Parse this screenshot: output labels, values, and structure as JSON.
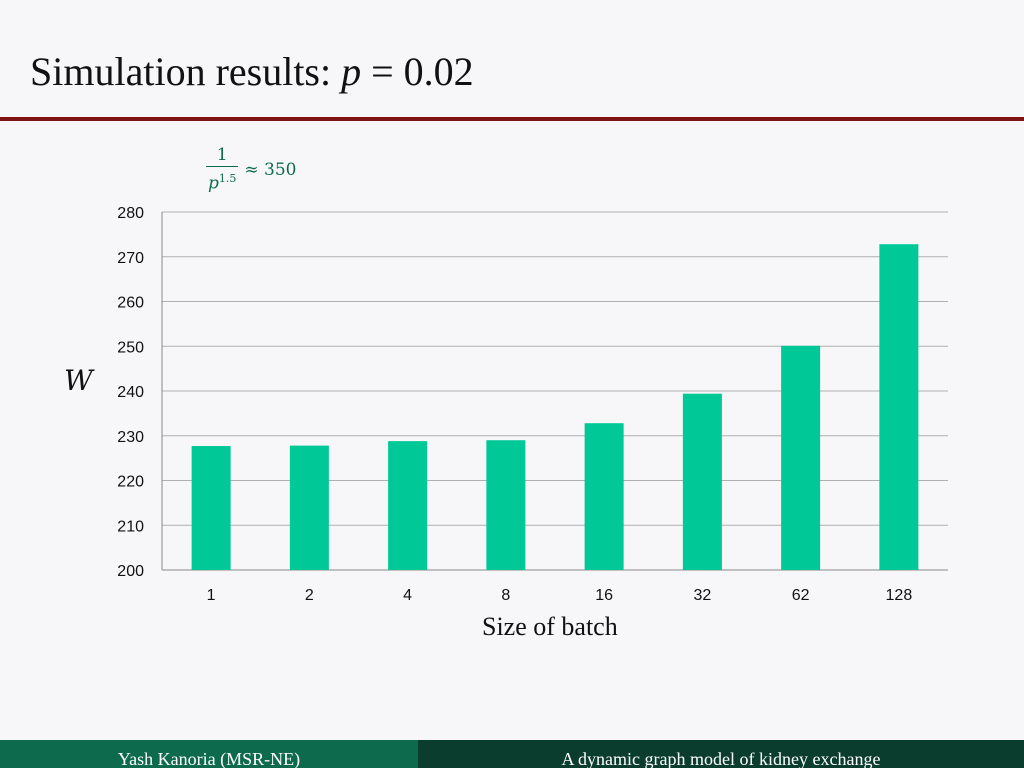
{
  "slide": {
    "title_prefix": "Simulation results: ",
    "title_var": "p",
    "title_eq": " = 0.02"
  },
  "annotation": {
    "numerator": "1",
    "denominator_base": "p",
    "denominator_exp": "1.5",
    "approx": "≈ 350"
  },
  "chart_data": {
    "type": "bar",
    "categories": [
      "1",
      "2",
      "4",
      "8",
      "16",
      "32",
      "62",
      "128"
    ],
    "values": [
      227.7,
      227.8,
      228.8,
      229.0,
      232.8,
      239.4,
      250.1,
      272.8
    ],
    "title": "",
    "xlabel": "Size of batch",
    "ylabel": "W",
    "ylim": [
      200,
      280
    ],
    "yticks": [
      "200",
      "210",
      "220",
      "230",
      "240",
      "250",
      "260",
      "270",
      "280"
    ],
    "grid": true,
    "bar_color": "#00c896",
    "grid_color": "#b0b0b0"
  },
  "footer": {
    "left": "Yash Kanoria (MSR-NE)",
    "right": "A dynamic graph model of kidney exchange"
  }
}
